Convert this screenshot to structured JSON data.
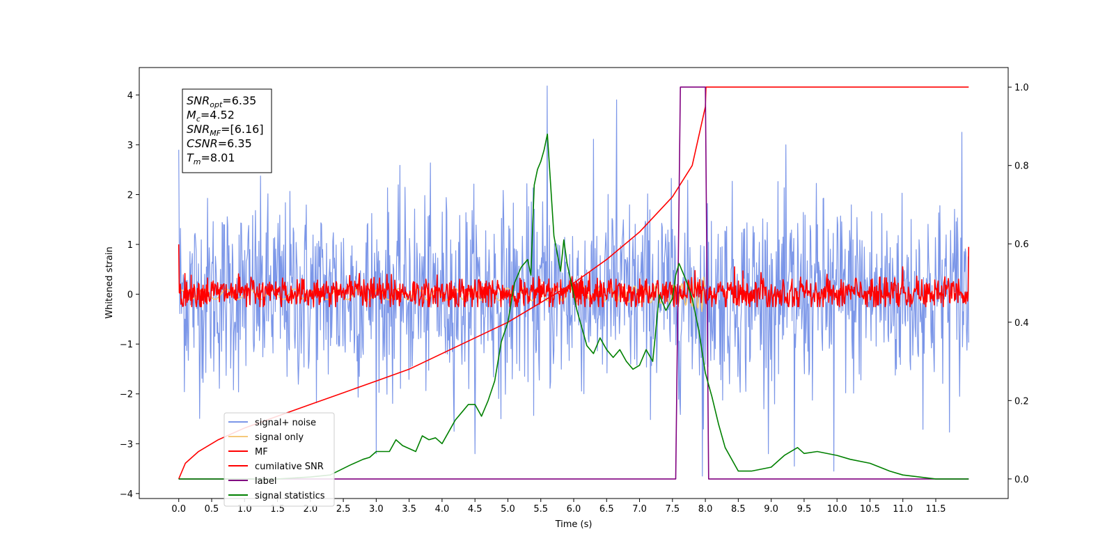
{
  "chart_data": {
    "type": "line",
    "xlabel": "Time (s)",
    "ylabel": "Whitened strain",
    "xlim": [
      -0.6,
      12.6
    ],
    "ylim": [
      -4.1,
      4.55
    ],
    "y2lim": [
      -0.05,
      1.05
    ],
    "xticks": [
      "0.0",
      "0.5",
      "1.0",
      "1.5",
      "2.0",
      "2.5",
      "3.0",
      "3.5",
      "4.0",
      "4.5",
      "5.0",
      "5.5",
      "6.0",
      "6.5",
      "7.0",
      "7.5",
      "8.0",
      "8.5",
      "9.0",
      "9.5",
      "10.0",
      "10.5",
      "11.0",
      "11.5"
    ],
    "xtick_values": [
      0.0,
      0.5,
      1.0,
      1.5,
      2.0,
      2.5,
      3.0,
      3.5,
      4.0,
      4.5,
      5.0,
      5.5,
      6.0,
      6.5,
      7.0,
      7.5,
      8.0,
      8.5,
      9.0,
      9.5,
      10.0,
      10.5,
      11.0,
      11.5
    ],
    "yticks": [
      "−4",
      "−3",
      "−2",
      "−1",
      "0",
      "1",
      "2",
      "3",
      "4"
    ],
    "ytick_values": [
      -4,
      -3,
      -2,
      -1,
      0,
      1,
      2,
      3,
      4
    ],
    "y2ticks": [
      "0.0",
      "0.2",
      "0.4",
      "0.6",
      "0.8",
      "1.0"
    ],
    "y2tick_values": [
      0.0,
      0.2,
      0.4,
      0.6,
      0.8,
      1.0
    ],
    "annotation": {
      "lines": [
        {
          "main": "SNR",
          "sub": "opt",
          "rest": "=6.35"
        },
        {
          "main": "M",
          "sub": "c",
          "rest": "=4.52"
        },
        {
          "main": "SNR",
          "sub": "MF",
          "rest": "=[6.16]"
        },
        {
          "main": "CSNR",
          "sub": "",
          "rest": "=6.35"
        },
        {
          "main": "T",
          "sub": "m",
          "rest": "=8.01"
        }
      ]
    },
    "legend": {
      "placement": "lower-left",
      "entries": [
        {
          "label": "signal+ noise",
          "color": "#7b96e8"
        },
        {
          "label": "signal only",
          "color": "#f5c87a"
        },
        {
          "label": "MF",
          "color": "#ff0000"
        },
        {
          "label": "cumilative SNR",
          "color": "#ff0000"
        },
        {
          "label": "label",
          "color": "#800080"
        },
        {
          "label": "signal statistics",
          "color": "#008000"
        }
      ]
    },
    "series": [
      {
        "name": "signal+ noise",
        "axis": "left",
        "color": "#7b96e8",
        "kind": "noise",
        "x_range": [
          0.0,
          12.0
        ],
        "amplitude_std": 0.95,
        "visible_peaks": [
          [
            0.0,
            2.9
          ],
          [
            5.6,
            4.18
          ],
          [
            6.65,
            3.9
          ],
          [
            7.95,
            -3.65
          ],
          [
            9.35,
            -3.45
          ],
          [
            9.95,
            -3.55
          ],
          [
            11.9,
            3.25
          ]
        ]
      },
      {
        "name": "signal only",
        "axis": "left",
        "color": "#f5c87a",
        "kind": "chirp",
        "x_range": [
          0.0,
          8.01
        ],
        "peak_time": 8.0,
        "peak_amplitude": 0.35
      },
      {
        "name": "MF",
        "axis": "left",
        "color": "#ff0000",
        "kind": "noise",
        "x_range": [
          0.0,
          12.0
        ],
        "amplitude_std": 0.18,
        "range_band": [
          -0.25,
          0.55
        ],
        "endpoints": [
          [
            0.0,
            1.0
          ],
          [
            12.0,
            0.95
          ]
        ]
      },
      {
        "name": "cumilative SNR",
        "axis": "right",
        "color": "#ff0000",
        "x": [
          0.0,
          0.1,
          0.3,
          0.6,
          1.0,
          1.5,
          2.0,
          2.5,
          3.0,
          3.5,
          4.0,
          4.5,
          5.0,
          5.5,
          6.0,
          6.5,
          7.0,
          7.5,
          7.8,
          8.0,
          8.01,
          12.0
        ],
        "y": [
          0.0,
          0.04,
          0.07,
          0.1,
          0.13,
          0.16,
          0.19,
          0.22,
          0.25,
          0.28,
          0.32,
          0.36,
          0.4,
          0.45,
          0.5,
          0.56,
          0.63,
          0.72,
          0.8,
          0.95,
          1.0,
          1.0
        ]
      },
      {
        "name": "label",
        "axis": "right",
        "color": "#800080",
        "x": [
          0.0,
          7.55,
          7.62,
          8.0,
          8.05,
          12.0
        ],
        "y": [
          0.0,
          0.0,
          1.0,
          1.0,
          0.0,
          0.0
        ]
      },
      {
        "name": "signal statistics",
        "axis": "right",
        "color": "#008000",
        "x": [
          0.0,
          0.5,
          1.0,
          1.5,
          2.0,
          2.3,
          2.6,
          2.8,
          2.9,
          3.0,
          3.2,
          3.3,
          3.4,
          3.6,
          3.7,
          3.8,
          3.9,
          4.0,
          4.1,
          4.2,
          4.3,
          4.4,
          4.5,
          4.6,
          4.7,
          4.8,
          4.9,
          5.0,
          5.1,
          5.2,
          5.3,
          5.35,
          5.4,
          5.45,
          5.5,
          5.55,
          5.6,
          5.7,
          5.8,
          5.85,
          5.9,
          6.0,
          6.05,
          6.1,
          6.2,
          6.3,
          6.4,
          6.5,
          6.6,
          6.7,
          6.8,
          6.9,
          7.0,
          7.1,
          7.2,
          7.3,
          7.4,
          7.5,
          7.55,
          7.6,
          7.7,
          7.8,
          7.9,
          8.0,
          8.1,
          8.2,
          8.3,
          8.5,
          8.7,
          9.0,
          9.2,
          9.4,
          9.5,
          9.7,
          10.0,
          10.2,
          10.5,
          10.8,
          11.0,
          11.5,
          12.0
        ],
        "y": [
          0.0,
          0.0,
          0.0,
          0.0,
          0.005,
          0.01,
          0.035,
          0.05,
          0.055,
          0.07,
          0.07,
          0.1,
          0.085,
          0.07,
          0.11,
          0.1,
          0.105,
          0.09,
          0.12,
          0.15,
          0.17,
          0.19,
          0.19,
          0.16,
          0.2,
          0.25,
          0.35,
          0.4,
          0.5,
          0.54,
          0.56,
          0.52,
          0.75,
          0.79,
          0.81,
          0.84,
          0.88,
          0.62,
          0.53,
          0.61,
          0.55,
          0.47,
          0.43,
          0.4,
          0.34,
          0.32,
          0.36,
          0.33,
          0.31,
          0.33,
          0.3,
          0.28,
          0.29,
          0.33,
          0.3,
          0.47,
          0.43,
          0.46,
          0.52,
          0.55,
          0.51,
          0.46,
          0.38,
          0.27,
          0.21,
          0.14,
          0.08,
          0.02,
          0.02,
          0.03,
          0.06,
          0.08,
          0.065,
          0.07,
          0.06,
          0.05,
          0.04,
          0.02,
          0.01,
          0.0,
          0.0
        ]
      }
    ]
  }
}
